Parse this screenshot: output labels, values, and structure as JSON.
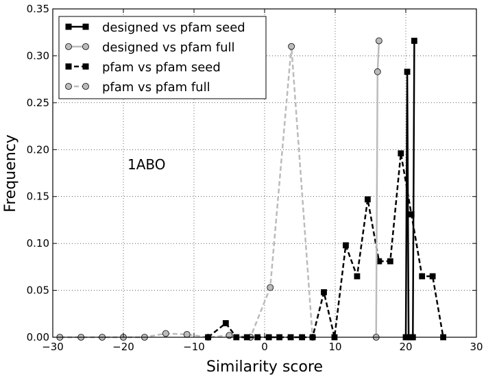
{
  "chart_data": {
    "type": "line",
    "xlabel": "Similarity score",
    "ylabel": "Frequency",
    "xlim": [
      -30,
      30
    ],
    "ylim": [
      0,
      0.35
    ],
    "xticks": [
      -30,
      -20,
      -10,
      0,
      10,
      20,
      30
    ],
    "xtick_labels": [
      "−30",
      "−20",
      "−10",
      "0",
      "10",
      "20",
      "30"
    ],
    "yticks": [
      0,
      0.05,
      0.1,
      0.15,
      0.2,
      0.25,
      0.3,
      0.35
    ],
    "ytick_labels": [
      "0.00",
      "0.05",
      "0.10",
      "0.15",
      "0.20",
      "0.25",
      "0.30",
      "0.35"
    ],
    "grid": true,
    "legend_position": "top-left",
    "annotation": "1ABO",
    "series": [
      {
        "name": "designed vs pfam seed",
        "color": "#000000",
        "dashed": false,
        "marker": "square",
        "x": [
          20.0,
          20.2,
          20.4,
          20.6,
          20.8,
          21.0,
          21.2
        ],
        "y": [
          0.0,
          0.283,
          0.0,
          0.0,
          0.0,
          0.0,
          0.316
        ]
      },
      {
        "name": "designed vs pfam full",
        "color": "#bbbbbb",
        "dashed": false,
        "marker": "circle",
        "x": [
          15.8,
          16.0,
          16.2
        ],
        "y": [
          0.0,
          0.283,
          0.316
        ]
      },
      {
        "name": "pfam vs pfam seed",
        "color": "#000000",
        "dashed": true,
        "marker": "square",
        "x": [
          -8.0,
          -5.5,
          -4.0,
          -2.5,
          -1.0,
          0.6,
          2.1,
          3.7,
          5.3,
          6.8,
          8.4,
          9.9,
          11.5,
          13.1,
          14.6,
          16.2,
          17.8,
          19.3,
          20.8,
          22.3,
          23.8,
          25.3
        ],
        "y": [
          0.0,
          0.015,
          0.0,
          0.0,
          0.0,
          0.0,
          0.0,
          0.0,
          0.0,
          0.0,
          0.048,
          0.0,
          0.098,
          0.065,
          0.147,
          0.081,
          0.081,
          0.196,
          0.131,
          0.065,
          0.065,
          0.0
        ]
      },
      {
        "name": "pfam vs pfam full",
        "color": "#bbbbbb",
        "dashed": true,
        "marker": "circle",
        "x": [
          -29.0,
          -26.0,
          -23.0,
          -20.0,
          -17.0,
          -14.0,
          -11.0,
          -8.0,
          -5.0,
          -2.0,
          0.8,
          3.8,
          6.8
        ],
        "y": [
          0.0,
          0.0,
          0.0,
          0.0,
          0.0,
          0.004,
          0.003,
          0.0,
          0.002,
          0.0,
          0.053,
          0.31,
          0.0
        ]
      }
    ]
  }
}
